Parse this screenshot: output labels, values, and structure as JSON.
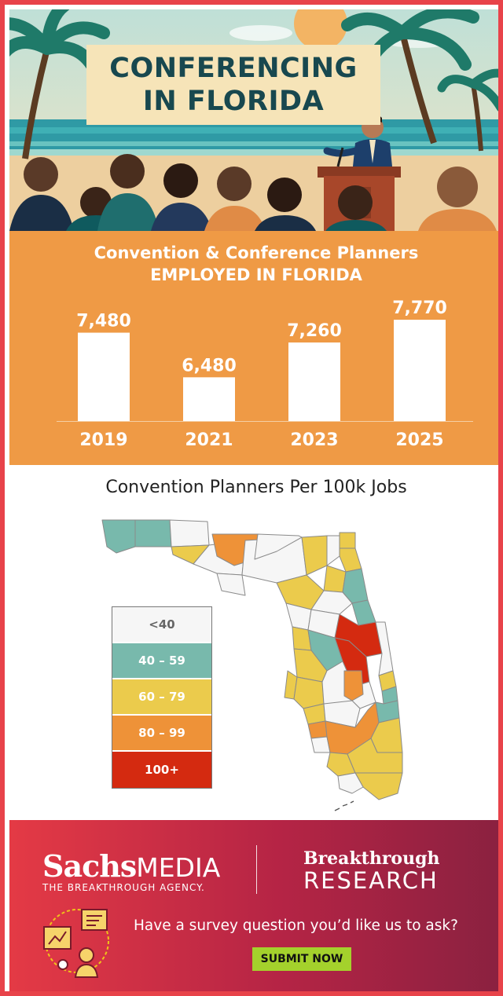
{
  "hero": {
    "title_line1": "CONFERENCING",
    "title_line2": "IN FLORIDA",
    "illustration_icon": "beach-conference-illustration"
  },
  "chart_data": {
    "type": "bar",
    "title": "Convention & Conference Planners",
    "subtitle": "EMPLOYED IN FLORIDA",
    "categories": [
      "2019",
      "2021",
      "2023",
      "2025"
    ],
    "values": [
      7480,
      6480,
      7260,
      7770
    ],
    "value_labels": [
      "7,480",
      "6,480",
      "7,260",
      "7,770"
    ],
    "ylim": [
      5500,
      8000
    ],
    "bar_color": "#ffffff",
    "background": "#ef9a45",
    "grid": false,
    "legend": "none"
  },
  "map": {
    "title": "Convention Planners Per 100k Jobs",
    "legend": [
      {
        "label": "<40",
        "color": "#f6f6f6",
        "text_color": "#666666"
      },
      {
        "label": "40 – 59",
        "color": "#78b9ac",
        "text_color": "#ffffff"
      },
      {
        "label": "60 – 79",
        "color": "#ebcb4c",
        "text_color": "#ffffff"
      },
      {
        "label": "80 – 99",
        "color": "#ee9238",
        "text_color": "#ffffff"
      },
      {
        "label": "100+",
        "color": "#d42a10",
        "text_color": "#ffffff"
      }
    ]
  },
  "footer": {
    "brand_sachs": "Sachs",
    "brand_media": "MEDIA",
    "brand_tagline": "THE BREAKTHROUGH AGENCY.",
    "breakthrough": "Breakthrough",
    "research": "RESEARCH",
    "survey_prompt": "Have a survey question you’d like us to ask?",
    "submit_label": "SUBMIT NOW",
    "survey_icon": "survey-research-icon",
    "submit_color": "#a4d12c"
  }
}
